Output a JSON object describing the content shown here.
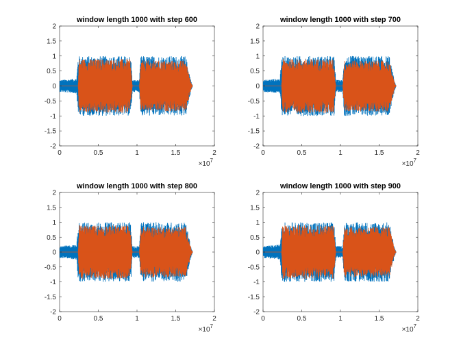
{
  "chart_data": [
    {
      "type": "line",
      "title": "window length 1000 with step 600",
      "xlim": [
        0,
        2
      ],
      "ylim": [
        -2,
        2
      ],
      "xticks": [
        "0",
        "0.5",
        "1",
        "1.5",
        "2"
      ],
      "yticks": [
        "2",
        "1.5",
        "1",
        "0.5",
        "0",
        "-0.5",
        "-1",
        "-1.5",
        "-2"
      ],
      "x_exponent": "×10",
      "x_exponent_power": "7",
      "colors": {
        "series1": "#0072BD",
        "series2": "#D95319"
      },
      "series": [
        {
          "x": [
            0,
            0.22,
            0.24,
            0.92,
            0.94,
            1.03,
            1.05,
            1.63,
            1.7,
            1.72
          ],
          "y_max": [
            0.2,
            0.25,
            1.0,
            1.0,
            0.2,
            0.2,
            1.0,
            1.0,
            0.15,
            0
          ]
        },
        {
          "x": [
            0,
            0.24,
            0.25,
            0.91,
            0.94,
            1.03,
            1.05,
            1.63,
            1.7,
            1.72
          ],
          "y_max": [
            0.0,
            0.0,
            0.9,
            0.9,
            0.0,
            0.0,
            0.85,
            0.85,
            0.1,
            0
          ]
        }
      ]
    },
    {
      "type": "line",
      "title": "window length 1000 with step 700",
      "xlim": [
        0,
        2
      ],
      "ylim": [
        -2,
        2
      ],
      "xticks": [
        "0",
        "0.5",
        "1",
        "1.5",
        "2"
      ],
      "yticks": [
        "2",
        "1.5",
        "1",
        "0.5",
        "0",
        "-0.5",
        "-1",
        "-1.5",
        "-2"
      ],
      "x_exponent": "×10",
      "x_exponent_power": "7",
      "colors": {
        "series1": "#0072BD",
        "series2": "#D95319"
      },
      "series": [
        {
          "x": [
            0,
            0.22,
            0.24,
            0.92,
            0.94,
            1.03,
            1.05,
            1.63,
            1.7,
            1.72
          ],
          "y_max": [
            0.2,
            0.25,
            1.0,
            1.0,
            0.2,
            0.2,
            1.0,
            1.0,
            0.15,
            0
          ]
        },
        {
          "x": [
            0,
            0.24,
            0.25,
            0.91,
            0.94,
            1.03,
            1.05,
            1.63,
            1.7,
            1.72
          ],
          "y_max": [
            0.0,
            0.0,
            0.9,
            0.9,
            0.0,
            0.0,
            0.85,
            0.85,
            0.1,
            0
          ]
        }
      ]
    },
    {
      "type": "line",
      "title": "window length 1000 with step 800",
      "xlim": [
        0,
        2
      ],
      "ylim": [
        -2,
        2
      ],
      "xticks": [
        "0",
        "0.5",
        "1",
        "1.5",
        "2"
      ],
      "yticks": [
        "2",
        "1.5",
        "1",
        "0.5",
        "0",
        "-0.5",
        "-1",
        "-1.5",
        "-2"
      ],
      "x_exponent": "×10",
      "x_exponent_power": "7",
      "colors": {
        "series1": "#0072BD",
        "series2": "#D95319"
      },
      "series": [
        {
          "x": [
            0,
            0.22,
            0.24,
            0.92,
            0.94,
            1.03,
            1.05,
            1.63,
            1.7,
            1.72
          ],
          "y_max": [
            0.2,
            0.25,
            1.0,
            1.0,
            0.2,
            0.2,
            1.0,
            1.0,
            0.15,
            0
          ]
        },
        {
          "x": [
            0,
            0.24,
            0.25,
            0.91,
            0.94,
            1.03,
            1.05,
            1.63,
            1.7,
            1.72
          ],
          "y_max": [
            0.0,
            0.0,
            0.9,
            0.9,
            0.0,
            0.0,
            0.85,
            0.85,
            0.1,
            0
          ]
        }
      ]
    },
    {
      "type": "line",
      "title": "window length 1000 with step 900",
      "xlim": [
        0,
        2
      ],
      "ylim": [
        -2,
        2
      ],
      "xticks": [
        "0",
        "0.5",
        "1",
        "1.5",
        "2"
      ],
      "yticks": [
        "2",
        "1.5",
        "1",
        "0.5",
        "0",
        "-0.5",
        "-1",
        "-1.5",
        "-2"
      ],
      "x_exponent": "×10",
      "x_exponent_power": "7",
      "colors": {
        "series1": "#0072BD",
        "series2": "#D95319"
      },
      "series": [
        {
          "x": [
            0,
            0.22,
            0.24,
            0.92,
            0.94,
            1.03,
            1.05,
            1.63,
            1.7,
            1.72
          ],
          "y_max": [
            0.2,
            0.25,
            1.0,
            1.0,
            0.2,
            0.2,
            1.0,
            1.0,
            0.15,
            0
          ]
        },
        {
          "x": [
            0,
            0.24,
            0.25,
            0.91,
            0.94,
            1.03,
            1.05,
            1.63,
            1.7,
            1.72
          ],
          "y_max": [
            0.0,
            0.0,
            0.9,
            0.9,
            0.0,
            0.0,
            0.85,
            0.85,
            0.1,
            0
          ]
        }
      ]
    }
  ]
}
